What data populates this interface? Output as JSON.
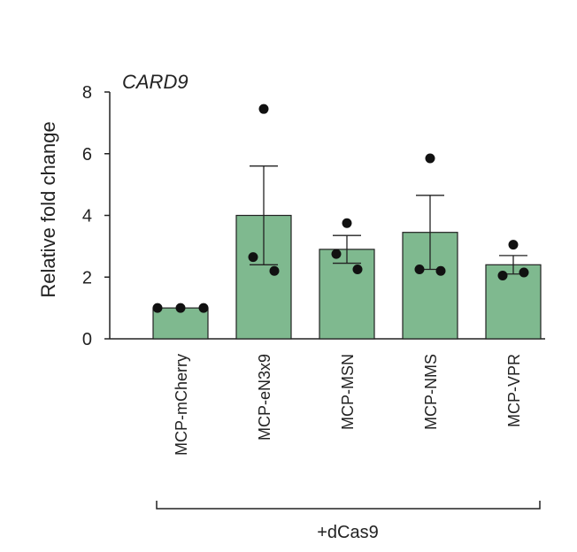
{
  "chart_data": {
    "type": "bar",
    "title": "CARD9",
    "ylabel": "Relative fold change",
    "xlabel": "",
    "ylim": [
      0,
      8
    ],
    "yticks": [
      0,
      2,
      4,
      6,
      8
    ],
    "categories": [
      "MCP-mCherry",
      "MCP-eN3x9",
      "MCP-MSN",
      "MCP-NMS",
      "MCP-VPR"
    ],
    "values": [
      1.0,
      4.0,
      2.9,
      3.45,
      2.4
    ],
    "error": [
      0,
      1.6,
      0.45,
      1.2,
      0.3
    ],
    "points": [
      [
        1.0,
        1.0,
        1.0
      ],
      [
        7.45,
        2.65,
        2.2
      ],
      [
        3.75,
        2.75,
        2.25
      ],
      [
        5.85,
        2.25,
        2.2
      ],
      [
        3.05,
        2.05,
        2.15
      ]
    ],
    "group_label": "+dCas9",
    "bar_color": "#7fb98f",
    "legend": "none",
    "grid": false
  }
}
